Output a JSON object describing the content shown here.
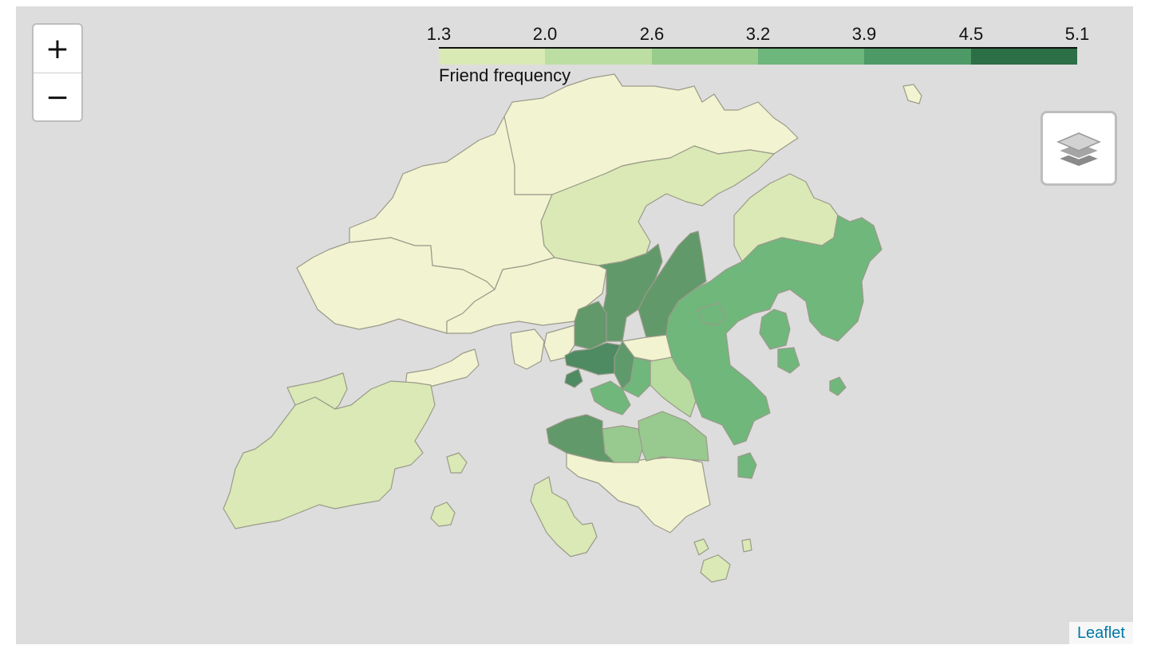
{
  "legend": {
    "title": "Friend frequency",
    "ticks": [
      "1.3",
      "2.0",
      "2.6",
      "3.2",
      "3.9",
      "4.5",
      "5.1"
    ],
    "colors": [
      "#d9eab4",
      "#bcdea3",
      "#98cc8c",
      "#6db67c",
      "#4e9a66",
      "#2c6e45"
    ]
  },
  "zoom": {
    "in_label": "+",
    "out_label": "−"
  },
  "layers_control": {
    "icon": "layers-icon"
  },
  "attribution": {
    "label": "Leaflet"
  },
  "palette": {
    "background": "#dddddd",
    "lowest": "#f2f3d0",
    "low": "#dae9b5",
    "mid_low": "#98c98f",
    "mid": "#70b77c",
    "high": "#62996a",
    "highest": "#4e8a62",
    "border": "#9a9a8a"
  }
}
